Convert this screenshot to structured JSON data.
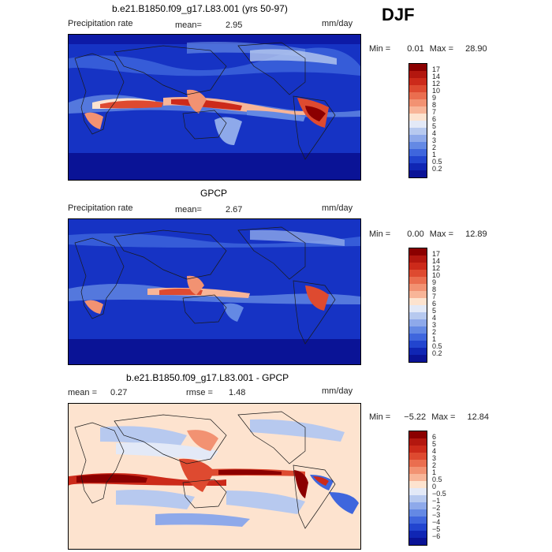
{
  "season": "DJF",
  "panels": [
    {
      "title": "b.e21.B1850.f09_g17.L83.001 (yrs 50-97)",
      "left_label": "Precipitation rate",
      "stat1_label": "mean=",
      "stat1_value": "2.95",
      "stat2_label": "",
      "stat2_value": "",
      "units": "mm/day",
      "min_label": "Min =",
      "min_value": "0.01",
      "max_label": "Max =",
      "max_value": "28.90"
    },
    {
      "title": "GPCP",
      "left_label": "Precipitation rate",
      "stat1_label": "mean=",
      "stat1_value": "2.67",
      "stat2_label": "",
      "stat2_value": "",
      "units": "mm/day",
      "min_label": "Min =",
      "min_value": "0.00",
      "max_label": "Max =",
      "max_value": "12.89"
    },
    {
      "title": "b.e21.B1850.f09_g17.L83.001 - GPCP",
      "left_label": "",
      "stat1_label": "mean =",
      "stat1_value": "0.27",
      "stat2_label": "rmse =",
      "stat2_value": "1.48",
      "units": "mm/day",
      "min_label": "Min =",
      "min_value": "−5.22",
      "max_label": "Max =",
      "max_value": "12.84"
    }
  ],
  "colorbars": {
    "precip": {
      "labels": [
        "17",
        "14",
        "12",
        "10",
        "9",
        "8",
        "7",
        "6",
        "5",
        "4",
        "3",
        "2",
        "1",
        "0.5",
        "0.2"
      ],
      "colors": [
        "#8b0000",
        "#b3170f",
        "#cc2a1a",
        "#de4a30",
        "#ea6e4f",
        "#f29272",
        "#f8b598",
        "#fde3cf",
        "#e3e9f7",
        "#b7c9ef",
        "#8ea9ea",
        "#6489e4",
        "#3f66dd",
        "#2245cf",
        "#1026b4",
        "#0a1396"
      ]
    },
    "diff": {
      "labels": [
        "6",
        "5",
        "4",
        "3",
        "2",
        "1",
        "0.5",
        "0",
        "−0.5",
        "−1",
        "−2",
        "−3",
        "−4",
        "−5",
        "−6"
      ],
      "colors": [
        "#8b0000",
        "#b3170f",
        "#cc2a1a",
        "#de4a30",
        "#ea6e4f",
        "#f29272",
        "#f8b598",
        "#fde3cf",
        "#e3e9f7",
        "#b7c9ef",
        "#8ea9ea",
        "#6489e4",
        "#3f66dd",
        "#2245cf",
        "#1026b4",
        "#0a1396"
      ]
    }
  }
}
